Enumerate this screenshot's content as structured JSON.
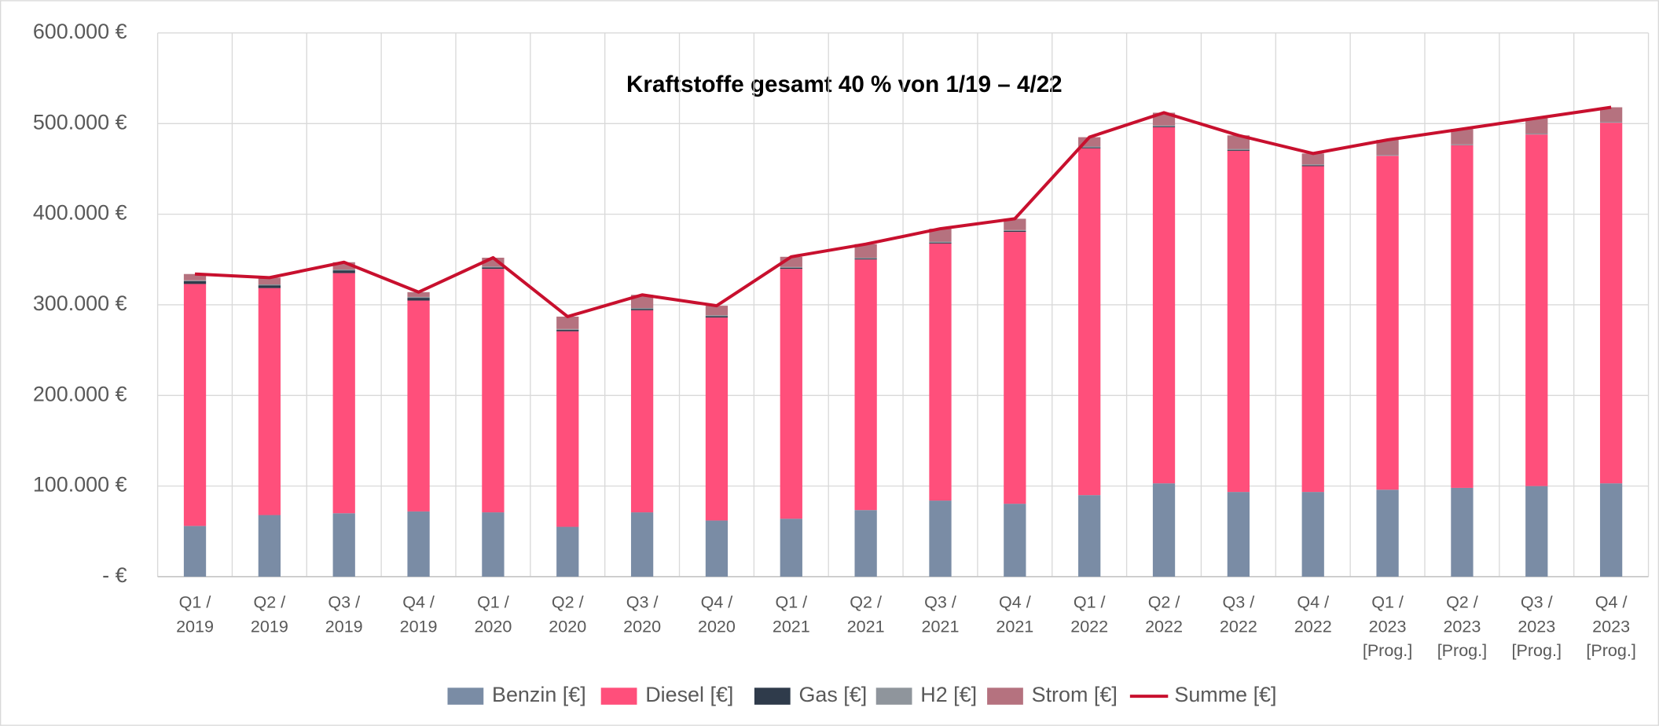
{
  "chart_data": {
    "type": "bar",
    "stacked": true,
    "title": "Kraftstoffe gesamt 40 % von 1/19 – 4/22",
    "categories": [
      [
        "Q1 /",
        "2019"
      ],
      [
        "Q2 /",
        "2019"
      ],
      [
        "Q3 /",
        "2019"
      ],
      [
        "Q4 /",
        "2019"
      ],
      [
        "Q1 /",
        "2020"
      ],
      [
        "Q2 /",
        "2020"
      ],
      [
        "Q3 /",
        "2020"
      ],
      [
        "Q4 /",
        "2020"
      ],
      [
        "Q1 /",
        "2021"
      ],
      [
        "Q2 /",
        "2021"
      ],
      [
        "Q3 /",
        "2021"
      ],
      [
        "Q4 /",
        "2021"
      ],
      [
        "Q1 /",
        "2022"
      ],
      [
        "Q2 /",
        "2022"
      ],
      [
        "Q3 /",
        "2022"
      ],
      [
        "Q4 /",
        "2022"
      ],
      [
        "Q1 /",
        "2023",
        "[Prog.]"
      ],
      [
        "Q2 /",
        "2023",
        "[Prog.]"
      ],
      [
        "Q3 /",
        "2023",
        "[Prog.]"
      ],
      [
        "Q4 /",
        "2023",
        "[Prog.]"
      ]
    ],
    "series": [
      {
        "name": "Benzin [€]",
        "type": "bar",
        "color": "#7a8ca5",
        "values": [
          56000,
          68000,
          70000,
          72000,
          71000,
          55000,
          71000,
          62000,
          64000,
          73500,
          84000,
          80500,
          90000,
          103000,
          93500,
          93500,
          96000,
          98000,
          100000,
          103000
        ]
      },
      {
        "name": "Diesel [€]",
        "type": "bar",
        "color": "#ff4f7b",
        "values": [
          267000,
          250500,
          265000,
          232700,
          268700,
          215800,
          223000,
          224000,
          275700,
          276500,
          283700,
          300000,
          382700,
          393000,
          376500,
          359500,
          368500,
          378000,
          388000,
          398000
        ]
      },
      {
        "name": "Gas [€]",
        "type": "bar",
        "color": "#2f3b4b",
        "values": [
          3000,
          3000,
          3000,
          3000,
          1500,
          1500,
          1500,
          1500,
          1000,
          1000,
          1000,
          1000,
          1000,
          1000,
          1000,
          1000,
          0,
          0,
          0,
          0
        ]
      },
      {
        "name": "H2 [€]",
        "type": "bar",
        "color": "#8f959c",
        "values": [
          1000,
          1000,
          1000,
          1000,
          1000,
          1000,
          1000,
          1000,
          1000,
          1000,
          1000,
          1000,
          1000,
          1000,
          1000,
          1000,
          1000,
          1000,
          1000,
          1000
        ]
      },
      {
        "name": "Strom [€]",
        "type": "bar",
        "color": "#b5727f",
        "values": [
          7000,
          7500,
          8000,
          5300,
          9800,
          13700,
          14500,
          10500,
          11300,
          15000,
          14300,
          12500,
          10300,
          14000,
          15000,
          12000,
          16500,
          17000,
          17000,
          16000
        ]
      },
      {
        "name": "Summe [€]",
        "type": "line",
        "color": "#c8102e",
        "values": [
          334000,
          330000,
          347000,
          314000,
          352000,
          287000,
          311000,
          299000,
          353000,
          367000,
          384000,
          395000,
          485000,
          512000,
          487000,
          467000,
          482000,
          494000,
          506000,
          518000
        ]
      }
    ],
    "ylim": [
      0,
      600000
    ],
    "yticks": [
      {
        "value": 0,
        "label": "- €"
      },
      {
        "value": 100000,
        "label": "100.000 €"
      },
      {
        "value": 200000,
        "label": "200.000 €"
      },
      {
        "value": 300000,
        "label": "300.000 €"
      },
      {
        "value": 400000,
        "label": "400.000 €"
      },
      {
        "value": 500000,
        "label": "500.000 €"
      },
      {
        "value": 600000,
        "label": "600.000 €"
      }
    ],
    "grid": true,
    "legend": "bottom"
  }
}
